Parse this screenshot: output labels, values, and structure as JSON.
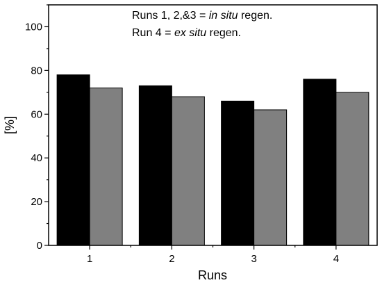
{
  "chart_data": {
    "type": "bar",
    "title": "",
    "xlabel": "Runs",
    "ylabel": "[%]",
    "categories": [
      "1",
      "2",
      "3",
      "4"
    ],
    "series": [
      {
        "values": [
          78,
          73,
          66,
          76
        ],
        "color": "#000000"
      },
      {
        "values": [
          72,
          68,
          62,
          70
        ],
        "color": "#808080"
      }
    ],
    "ylim": [
      0,
      110
    ],
    "yticks": [
      0,
      20,
      40,
      60,
      80,
      100
    ],
    "grid": false,
    "annotations": {
      "line1_prefix": "Runs 1, 2,&3 = ",
      "line1_italic": "in situ",
      "line1_suffix": " regen.",
      "line2_prefix": "Run 4 = ",
      "line2_italic": "ex situ",
      "line2_suffix": " regen."
    }
  }
}
